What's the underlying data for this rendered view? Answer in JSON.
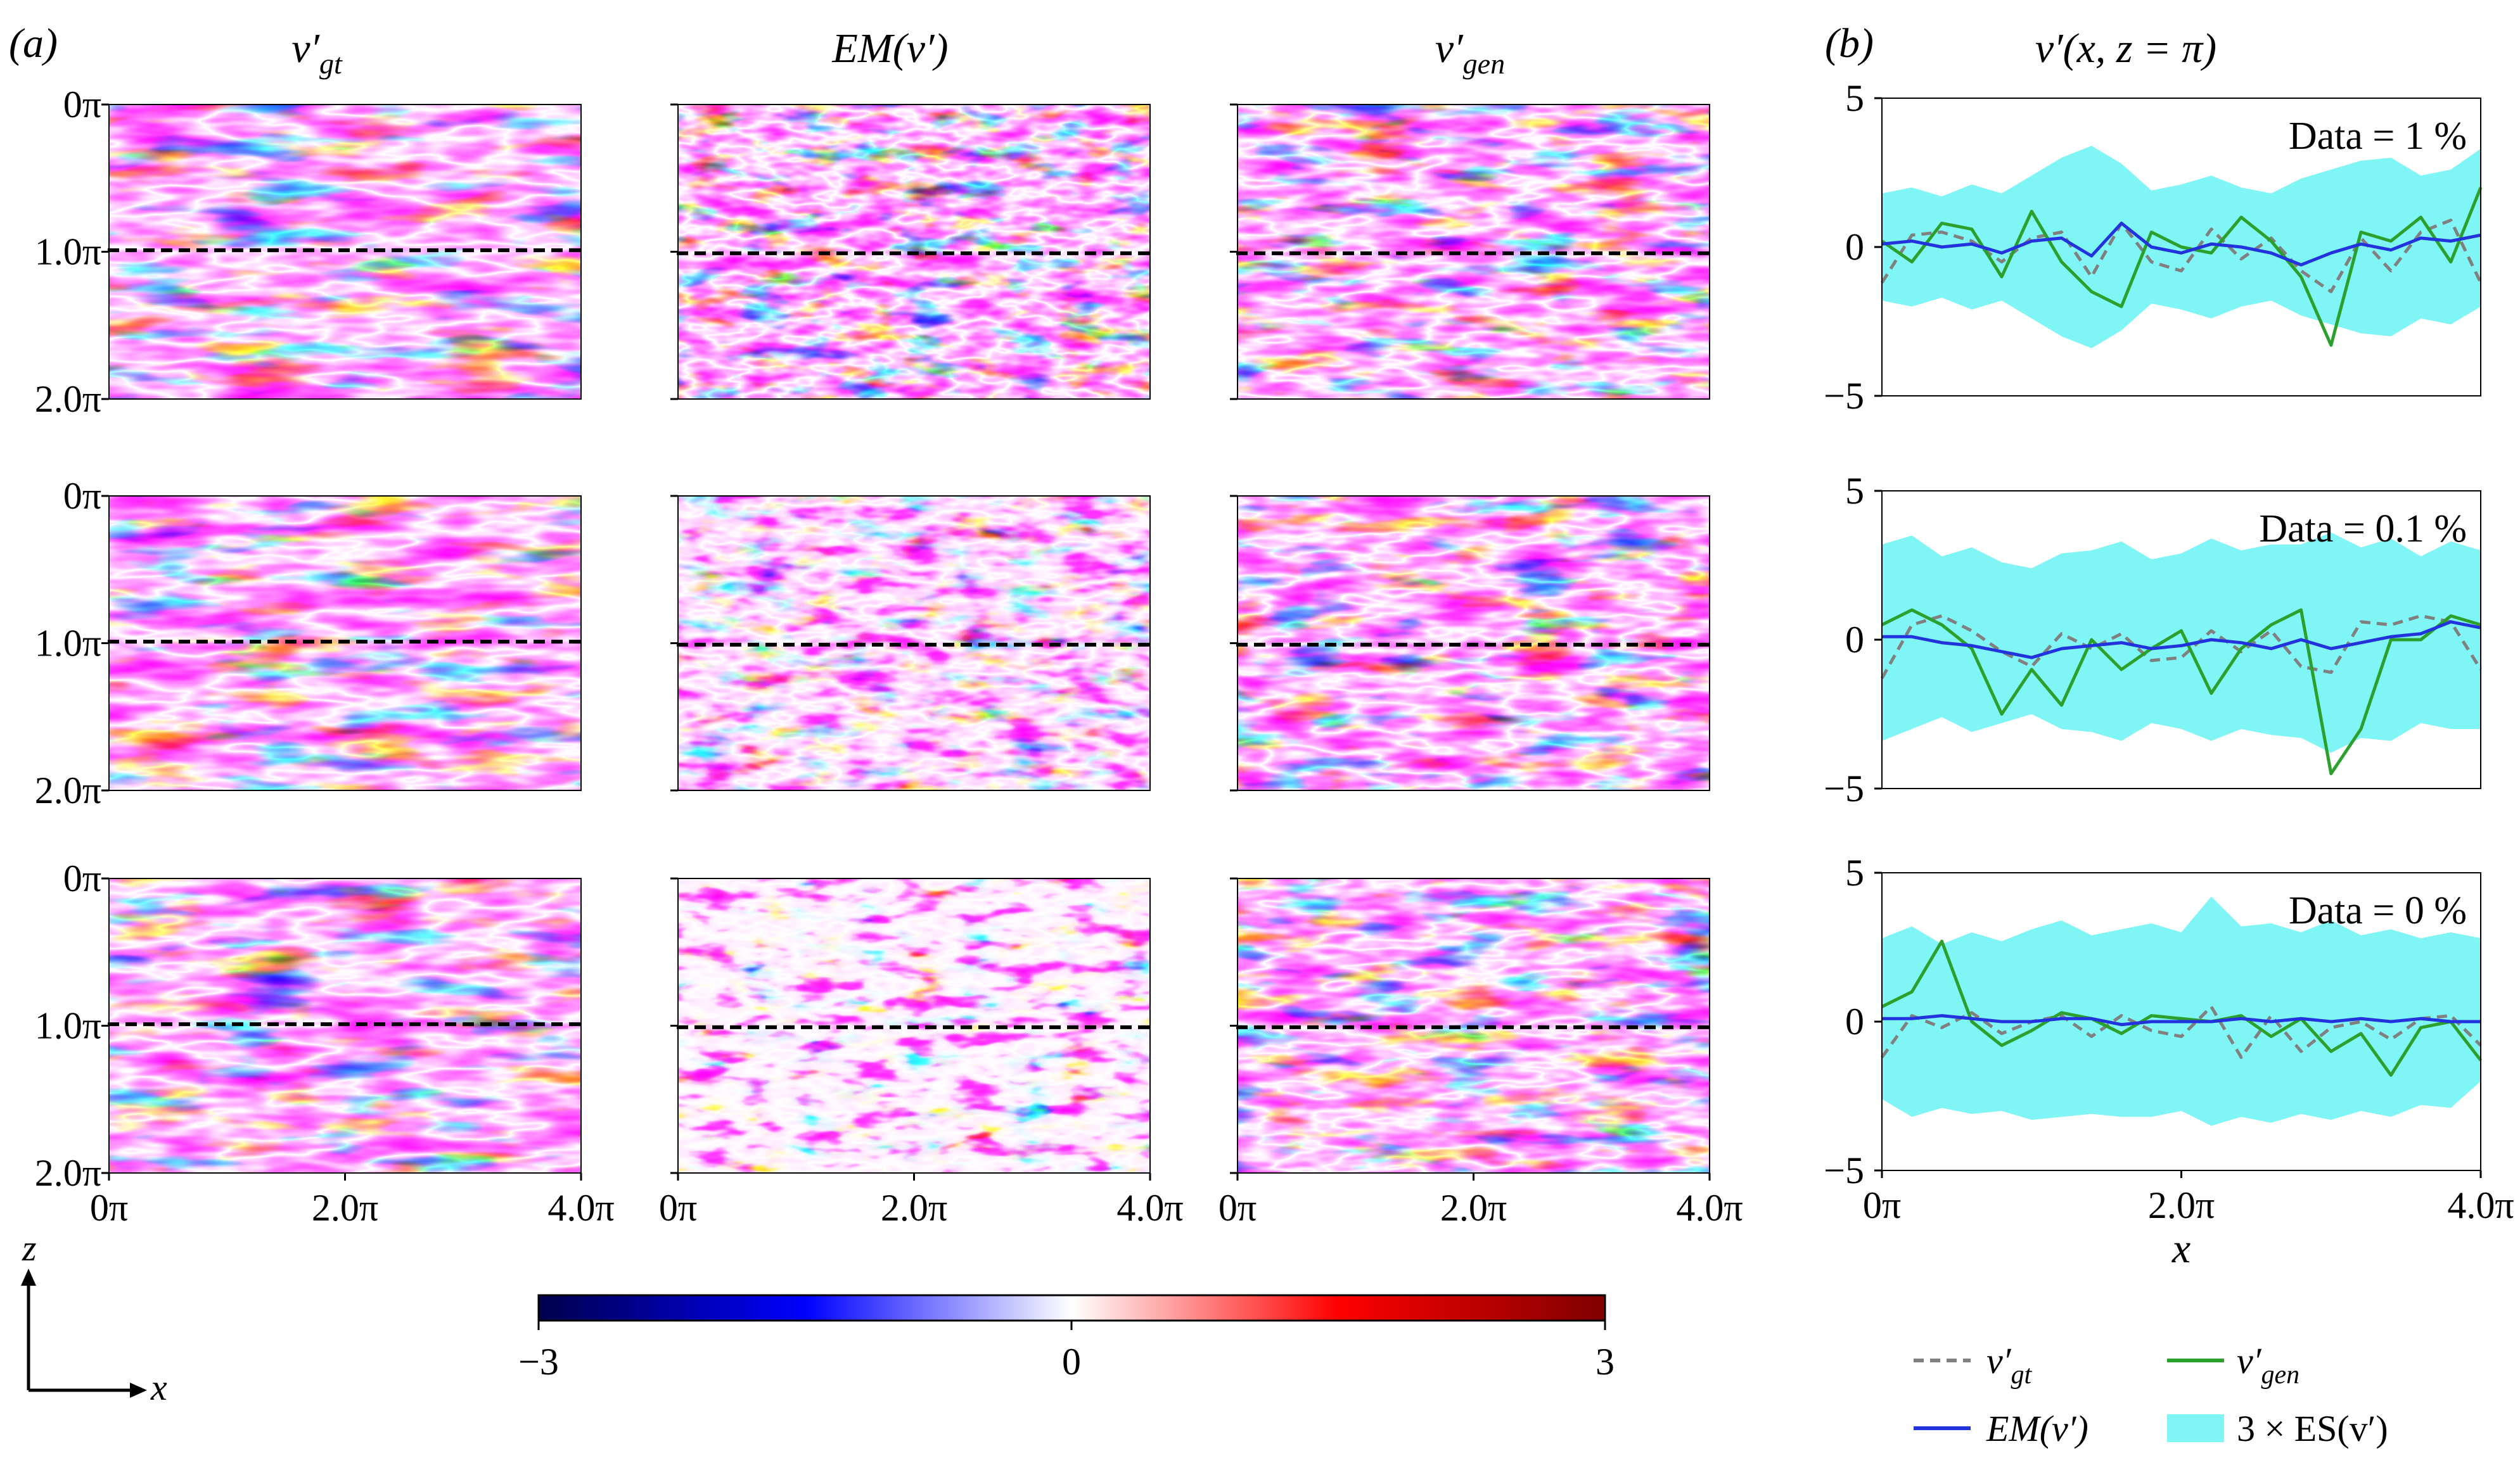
{
  "panel_labels": {
    "a": "(a)",
    "b": "(b)"
  },
  "column_titles": {
    "gt": {
      "base": "v",
      "prime": "′",
      "sub": "gt"
    },
    "em": {
      "text": "EM(v′)"
    },
    "gen": {
      "base": "v",
      "prime": "′",
      "sub": "gen"
    },
    "line_plot": {
      "text": "v′(x, z = π)"
    }
  },
  "z_ticks": [
    "0π",
    "1.0π",
    "2.0π"
  ],
  "x_ticks": [
    "0π",
    "2.0π",
    "4.0π"
  ],
  "y_ticks": [
    "5",
    "0",
    "−5"
  ],
  "x_axis_label": "x",
  "axes_indicator": {
    "vertical": "z",
    "horizontal": "x"
  },
  "colorbar": {
    "min_label": "−3",
    "mid_label": "0",
    "max_label": "3",
    "min": -3,
    "max": 3,
    "colors": [
      "#00004c",
      "#0000ff",
      "#ffffff",
      "#ff0000",
      "#7f0000"
    ]
  },
  "rows": [
    {
      "data_label": "Data = 1 %",
      "em_contrast": 0.9
    },
    {
      "data_label": "Data = 0.1 %",
      "em_contrast": 0.45
    },
    {
      "data_label": "Data = 0 %",
      "em_contrast": 0.1
    }
  ],
  "legend": {
    "gt": {
      "base": "v",
      "prime": "′",
      "sub": "gt",
      "color": "#808080"
    },
    "gen": {
      "base": "v",
      "prime": "′",
      "sub": "gen",
      "color": "#2ca02c"
    },
    "em": {
      "text": "EM(v′)",
      "color": "#2233dd"
    },
    "es": {
      "text": "3 × ES(v′)",
      "color": "#7ff5f5"
    }
  },
  "chart_data": [
    {
      "type": "line",
      "title": "Data = 1 %",
      "xlabel": "",
      "ylabel": "",
      "xlim": [
        0,
        4
      ],
      "ylim": [
        -5,
        5
      ],
      "x": [
        0,
        0.2,
        0.4,
        0.6,
        0.8,
        1.0,
        1.2,
        1.4,
        1.6,
        1.8,
        2.0,
        2.2,
        2.4,
        2.6,
        2.8,
        3.0,
        3.2,
        3.4,
        3.6,
        3.8,
        4.0
      ],
      "series": [
        {
          "name": "v′gt",
          "values": [
            -1.2,
            0.4,
            0.5,
            0.2,
            -0.5,
            0.3,
            0.5,
            -1.0,
            0.8,
            -0.5,
            -0.8,
            0.6,
            -0.4,
            0.3,
            -0.8,
            -1.5,
            0.3,
            -0.8,
            0.5,
            0.9,
            -1.2
          ]
        },
        {
          "name": "EM(v′)",
          "values": [
            0.1,
            0.2,
            0.0,
            0.1,
            -0.2,
            0.2,
            0.3,
            -0.3,
            0.8,
            0.0,
            -0.2,
            0.1,
            0.0,
            -0.2,
            -0.6,
            -0.2,
            0.1,
            -0.1,
            0.3,
            0.2,
            0.4
          ]
        },
        {
          "name": "v′gen",
          "values": [
            0.2,
            -0.5,
            0.8,
            0.6,
            -1.0,
            1.2,
            -0.5,
            -1.5,
            -2.0,
            0.5,
            0.0,
            -0.2,
            1.0,
            0.2,
            -1.0,
            -3.3,
            0.5,
            0.2,
            1.0,
            -0.5,
            2.0
          ]
        },
        {
          "name": "3 × ES(v′) upper",
          "values": [
            1.8,
            2.0,
            1.7,
            2.1,
            1.8,
            2.4,
            3.0,
            3.4,
            2.8,
            1.9,
            2.1,
            2.4,
            2.0,
            1.8,
            2.3,
            2.6,
            2.9,
            3.0,
            2.4,
            2.6,
            3.3
          ]
        },
        {
          "name": "3 × ES(v′) lower",
          "values": [
            -1.8,
            -2.0,
            -1.7,
            -2.1,
            -1.8,
            -2.4,
            -3.0,
            -3.4,
            -2.8,
            -1.9,
            -2.1,
            -2.4,
            -2.0,
            -1.8,
            -2.3,
            -2.6,
            -2.9,
            -3.0,
            -2.4,
            -2.6,
            -2.0
          ]
        }
      ]
    },
    {
      "type": "line",
      "title": "Data = 0.1 %",
      "xlabel": "",
      "ylabel": "",
      "xlim": [
        0,
        4
      ],
      "ylim": [
        -5,
        5
      ],
      "x": [
        0,
        0.2,
        0.4,
        0.6,
        0.8,
        1.0,
        1.2,
        1.4,
        1.6,
        1.8,
        2.0,
        2.2,
        2.4,
        2.6,
        2.8,
        3.0,
        3.2,
        3.4,
        3.6,
        3.8,
        4.0
      ],
      "series": [
        {
          "name": "v′gt",
          "values": [
            -1.3,
            0.5,
            0.8,
            0.3,
            -0.4,
            -0.9,
            0.2,
            -0.3,
            0.2,
            -0.7,
            -0.6,
            0.3,
            -0.4,
            0.3,
            -0.9,
            -1.1,
            0.6,
            0.5,
            0.8,
            0.6,
            -1.0
          ]
        },
        {
          "name": "EM(v′)",
          "values": [
            0.1,
            0.1,
            -0.1,
            -0.2,
            -0.4,
            -0.6,
            -0.3,
            -0.2,
            -0.1,
            -0.3,
            -0.2,
            0.0,
            -0.1,
            -0.3,
            0.0,
            -0.3,
            -0.1,
            0.1,
            0.2,
            0.6,
            0.4
          ]
        },
        {
          "name": "v′gen",
          "values": [
            0.5,
            1.0,
            0.5,
            -0.3,
            -2.5,
            -1.0,
            -2.2,
            0.0,
            -1.0,
            -0.3,
            0.3,
            -1.8,
            -0.3,
            0.5,
            1.0,
            -4.5,
            -3.0,
            0.0,
            0.0,
            0.8,
            0.5
          ]
        },
        {
          "name": "3 × ES(v′) upper",
          "values": [
            3.2,
            3.5,
            2.8,
            3.1,
            2.6,
            2.4,
            2.9,
            3.0,
            3.3,
            2.7,
            2.9,
            3.4,
            3.0,
            3.2,
            3.2,
            3.6,
            3.1,
            3.4,
            2.8,
            3.3,
            3.0
          ]
        },
        {
          "name": "3 × ES(v′) lower",
          "values": [
            -3.4,
            -3.0,
            -2.6,
            -3.1,
            -2.8,
            -2.5,
            -3.0,
            -3.1,
            -3.4,
            -2.8,
            -3.0,
            -3.4,
            -3.0,
            -3.2,
            -3.3,
            -3.8,
            -3.3,
            -3.4,
            -2.8,
            -3.0,
            -3.0
          ]
        }
      ]
    },
    {
      "type": "line",
      "title": "Data = 0 %",
      "xlabel": "x",
      "ylabel": "",
      "xlim": [
        0,
        4
      ],
      "ylim": [
        -5,
        5
      ],
      "x": [
        0,
        0.2,
        0.4,
        0.6,
        0.8,
        1.0,
        1.2,
        1.4,
        1.6,
        1.8,
        2.0,
        2.2,
        2.4,
        2.6,
        2.8,
        3.0,
        3.2,
        3.4,
        3.6,
        3.8,
        4.0
      ],
      "series": [
        {
          "name": "v′gt",
          "values": [
            -1.2,
            0.2,
            -0.2,
            0.3,
            -0.4,
            0.0,
            0.2,
            -0.5,
            0.2,
            -0.3,
            -0.5,
            0.5,
            -1.2,
            0.2,
            -1.0,
            -0.2,
            0.0,
            -0.6,
            0.1,
            0.2,
            -0.8
          ]
        },
        {
          "name": "EM(v′)",
          "values": [
            0.1,
            0.1,
            0.2,
            0.1,
            0.0,
            0.0,
            0.1,
            0.1,
            -0.1,
            0.0,
            0.0,
            0.0,
            0.1,
            0.0,
            0.1,
            0.0,
            0.1,
            0.0,
            0.1,
            0.0,
            0.0
          ]
        },
        {
          "name": "v′gen",
          "values": [
            0.5,
            1.0,
            2.7,
            0.0,
            -0.8,
            -0.3,
            0.3,
            0.1,
            -0.4,
            0.2,
            0.1,
            0.0,
            0.2,
            -0.5,
            0.1,
            -1.0,
            -0.4,
            -1.8,
            -0.2,
            0.0,
            -1.3
          ]
        },
        {
          "name": "3 × ES(v′) upper",
          "values": [
            2.8,
            3.2,
            2.6,
            3.0,
            2.7,
            3.1,
            3.4,
            2.9,
            3.1,
            3.3,
            3.0,
            4.2,
            3.2,
            3.3,
            3.0,
            3.4,
            2.9,
            3.1,
            2.8,
            3.0,
            2.8
          ]
        },
        {
          "name": "3 × ES(v′) lower",
          "values": [
            -2.6,
            -3.2,
            -2.9,
            -3.1,
            -3.0,
            -3.3,
            -3.2,
            -3.1,
            -3.2,
            -3.2,
            -3.0,
            -3.5,
            -3.2,
            -3.4,
            -3.1,
            -3.3,
            -3.0,
            -3.2,
            -2.8,
            -2.9,
            -2.0
          ]
        }
      ]
    }
  ]
}
